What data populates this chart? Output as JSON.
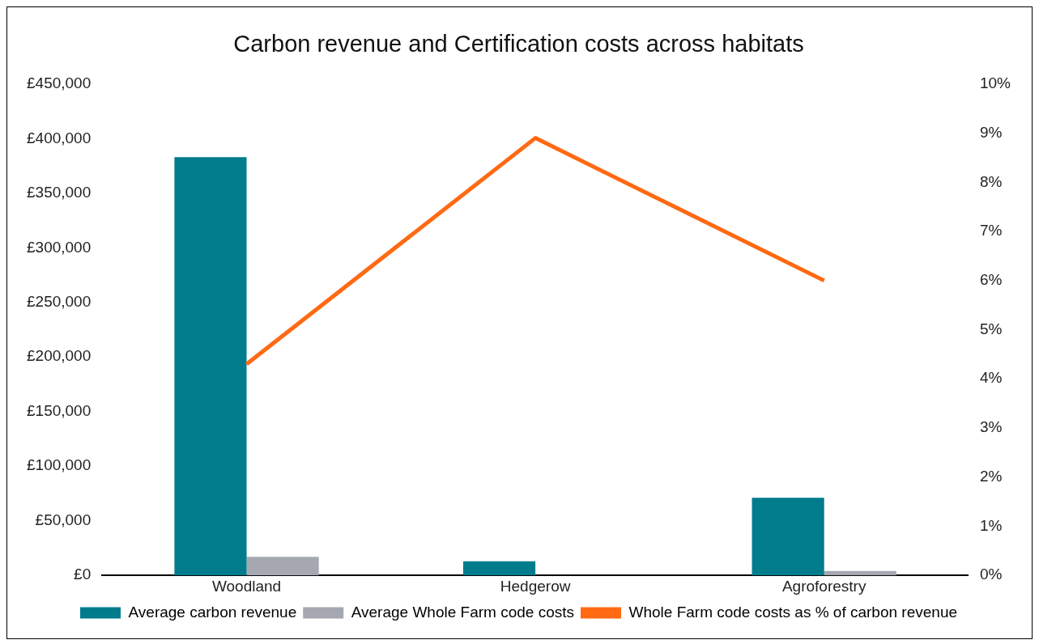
{
  "chart_data": {
    "type": "bar",
    "title": "Carbon revenue and Certification costs across habitats",
    "categories": [
      "Woodland",
      "Hedgerow",
      "Agroforestry"
    ],
    "series": [
      {
        "name": "Average carbon revenue",
        "color": "#007c8c",
        "values": [
          383000,
          13000,
          71000
        ]
      },
      {
        "name": "Average Whole Farm code costs",
        "color": "#a5a8b0",
        "values": [
          17000,
          null,
          4000
        ]
      },
      {
        "name": "Whole Farm code costs as % of carbon revenue",
        "type": "line",
        "axis": "y2",
        "color": "#ff6a13",
        "values": [
          4.3,
          8.9,
          6.0
        ],
        "marker": "none"
      }
    ],
    "ylim": [
      0,
      450000
    ],
    "yticks": [
      {
        "value": 0,
        "label": "£0"
      },
      {
        "value": 50000,
        "label": "£50,000"
      },
      {
        "value": 100000,
        "label": "£100,000"
      },
      {
        "value": 150000,
        "label": "£150,000"
      },
      {
        "value": 200000,
        "label": "£200,000"
      },
      {
        "value": 250000,
        "label": "£250,000"
      },
      {
        "value": 300000,
        "label": "£300,000"
      },
      {
        "value": 350000,
        "label": "£350,000"
      },
      {
        "value": 400000,
        "label": "£400,000"
      },
      {
        "value": 450000,
        "label": "£450,000"
      }
    ],
    "y2lim": [
      0,
      10
    ],
    "y2ticks": [
      {
        "value": 0,
        "label": "0%"
      },
      {
        "value": 1,
        "label": "1%"
      },
      {
        "value": 2,
        "label": "2%"
      },
      {
        "value": 3,
        "label": "3%"
      },
      {
        "value": 4,
        "label": "4%"
      },
      {
        "value": 5,
        "label": "5%"
      },
      {
        "value": 6,
        "label": "6%"
      },
      {
        "value": 7,
        "label": "7%"
      },
      {
        "value": 8,
        "label": "8%"
      },
      {
        "value": 9,
        "label": "9%"
      },
      {
        "value": 10,
        "label": "10%"
      }
    ],
    "grid": false,
    "legend": "bottom"
  }
}
